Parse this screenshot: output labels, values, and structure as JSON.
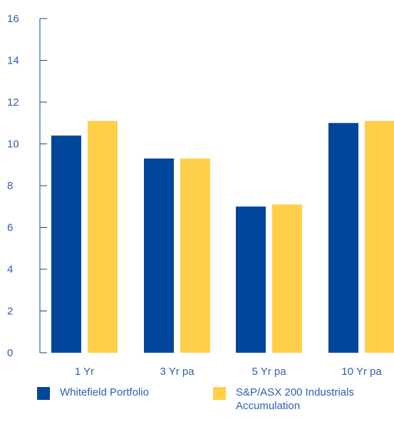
{
  "chart_data": {
    "type": "bar",
    "categories": [
      "1 Yr",
      "3 Yr pa",
      "5 Yr pa",
      "10 Yr pa"
    ],
    "series": [
      {
        "name": "Whitefield Portfolio",
        "color": "#00469b",
        "values": [
          10.4,
          9.3,
          7.0,
          11.0
        ]
      },
      {
        "name": "S&P/ASX 200 Industrials Accumulation",
        "color": "#ffcf4a",
        "values": [
          11.1,
          9.3,
          7.1,
          11.1
        ]
      }
    ],
    "yticks": [
      "0",
      "2",
      "4",
      "6",
      "8",
      "10",
      "12",
      "14",
      "16"
    ],
    "ylim": [
      0,
      16
    ],
    "title": "",
    "xlabel": "",
    "ylabel": "",
    "grid": false,
    "legend_position": "bottom",
    "axis_color": "#00469b"
  }
}
